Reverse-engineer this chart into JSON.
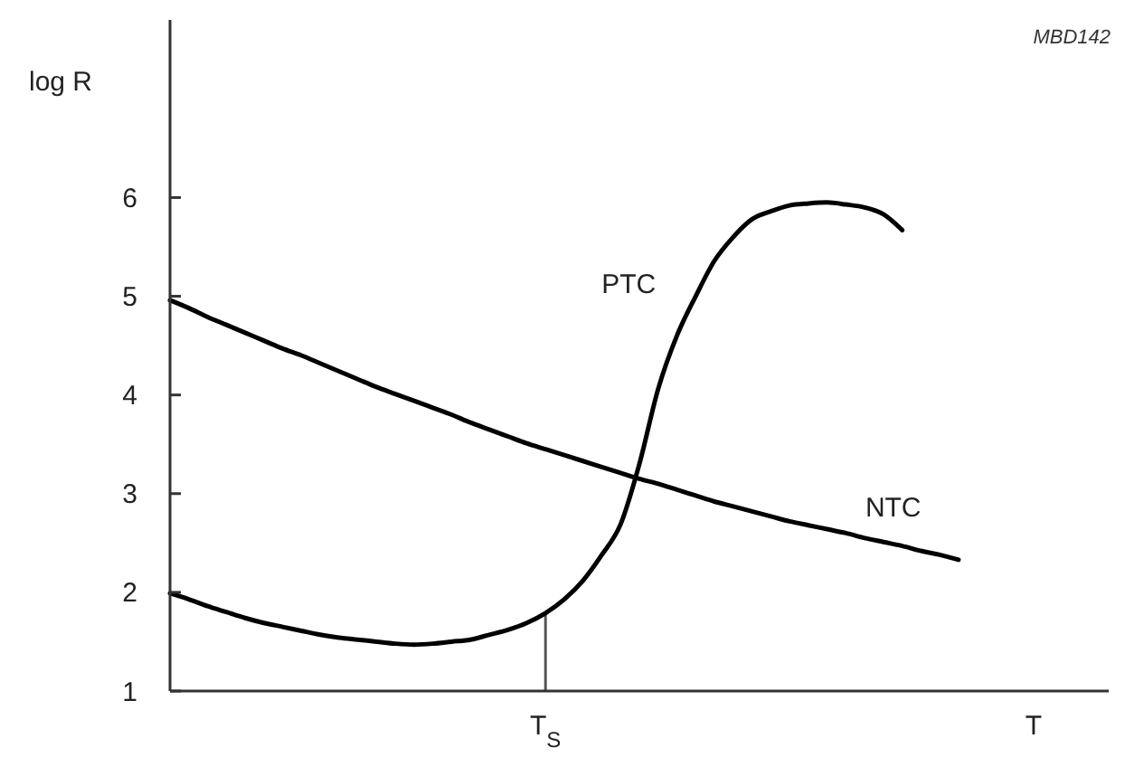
{
  "chart_data": {
    "type": "line",
    "ylabel": "log R",
    "annotations": [
      "MBD142"
    ],
    "categories": [
      null,
      null,
      null,
      null,
      null,
      null,
      null,
      null,
      null,
      null,
      null,
      null,
      null,
      null,
      null,
      null,
      null,
      null,
      null,
      null,
      "T$_{S}$",
      null,
      null,
      null,
      null,
      null,
      null,
      null,
      null,
      null,
      null,
      null,
      null,
      null,
      null,
      null,
      null,
      null,
      null,
      null,
      null,
      null,
      null,
      null,
      null,
      null,
      "T",
      null,
      null,
      null,
      null
    ],
    "ylim": [
      1,
      7.8
    ],
    "yticks": [
      1,
      2,
      3,
      4,
      5,
      6
    ],
    "series": [
      {
        "name": "PTC",
        "color": "#000000",
        "values": [
          1.99,
          1.93,
          1.86,
          1.8,
          1.74,
          1.69,
          1.65,
          1.61,
          1.57,
          1.54,
          1.52,
          1.5,
          1.48,
          1.47,
          1.48,
          1.5,
          1.52,
          1.57,
          1.62,
          1.69,
          1.79,
          1.93,
          2.12,
          2.38,
          2.69,
          3.3,
          4.06,
          4.6,
          5.0,
          5.36,
          5.6,
          5.78,
          5.86,
          5.92,
          5.94,
          5.95,
          5.93,
          5.9,
          5.83,
          5.67,
          null,
          null,
          null,
          null,
          null,
          null,
          null,
          null,
          null,
          null,
          null
        ]
      },
      {
        "name": "NTC",
        "color": "#000000",
        "values": [
          4.96,
          4.88,
          4.79,
          4.71,
          4.63,
          4.55,
          4.47,
          4.4,
          4.32,
          4.24,
          4.16,
          4.08,
          4.01,
          3.94,
          3.87,
          3.8,
          3.72,
          3.65,
          3.58,
          3.51,
          3.45,
          3.39,
          3.33,
          3.27,
          3.21,
          3.15,
          3.1,
          3.04,
          2.98,
          2.92,
          2.87,
          2.82,
          2.77,
          2.72,
          2.68,
          2.64,
          2.6,
          2.55,
          2.51,
          2.47,
          2.42,
          2.38,
          2.33,
          null,
          null,
          null,
          null,
          null,
          null,
          null,
          null
        ]
      }
    ],
    "ref_lines": [
      {
        "axis": "x",
        "value": "T$_{S}$"
      }
    ],
    "grid": false,
    "legend": false,
    "marker": "none",
    "line_style": "solid"
  }
}
